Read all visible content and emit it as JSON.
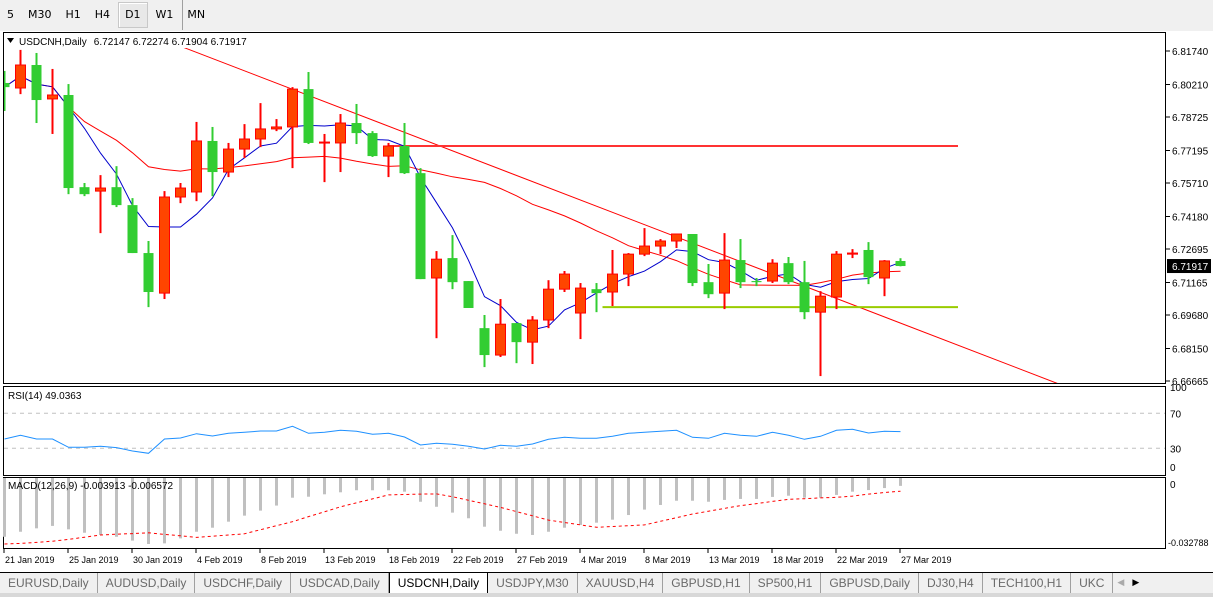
{
  "toolbar": {
    "timeframes": [
      {
        "label": "5",
        "active": false
      },
      {
        "label": "M30",
        "active": false
      },
      {
        "label": "H1",
        "active": false
      },
      {
        "label": "H4",
        "active": false
      },
      {
        "label": "D1",
        "active": true
      },
      {
        "label": "W1",
        "active": false
      },
      {
        "label": "MN",
        "active": false
      }
    ]
  },
  "header": {
    "menu_icon": "triangle-down-icon",
    "symbol": "USDCNH,Daily",
    "ohlc": "6.72147 6.72274 6.71904 6.71917"
  },
  "current_price": "6.71917",
  "price_ticks": [
    "6.81740",
    "6.80210",
    "6.78725",
    "6.77195",
    "6.75710",
    "6.74180",
    "6.72695",
    "6.71165",
    "6.69680",
    "6.68150",
    "6.66665"
  ],
  "date_labels": [
    "21 Jan 2019",
    "25 Jan 2019",
    "30 Jan 2019",
    "4 Feb 2019",
    "8 Feb 2019",
    "13 Feb 2019",
    "18 Feb 2019",
    "22 Feb 2019",
    "27 Feb 2019",
    "4 Mar 2019",
    "8 Mar 2019",
    "13 Mar 2019",
    "18 Mar 2019",
    "22 Mar 2019",
    "27 Mar 2019"
  ],
  "rsi": {
    "label": "RSI(14) 49.0363",
    "levels": [
      "100",
      "70",
      "30",
      "0"
    ]
  },
  "macd": {
    "label": "MACD(12,26,9) -0.003913 -0.006572",
    "levels": [
      "0",
      "-0.032788"
    ]
  },
  "tabs": [
    {
      "label": "EURUSD,Daily",
      "active": false
    },
    {
      "label": "AUDUSD,Daily",
      "active": false
    },
    {
      "label": "USDCHF,Daily",
      "active": false
    },
    {
      "label": "USDCAD,Daily",
      "active": false
    },
    {
      "label": "USDCNH,Daily",
      "active": true
    },
    {
      "label": "USDJPY,M30",
      "active": false
    },
    {
      "label": "XAUUSD,H4",
      "active": false
    },
    {
      "label": "GBPUSD,H1",
      "active": false
    },
    {
      "label": "SP500,H1",
      "active": false
    },
    {
      "label": "GBPUSD,Daily",
      "active": false
    },
    {
      "label": "DJ30,H4",
      "active": false
    },
    {
      "label": "TECH100,H1",
      "active": false
    },
    {
      "label": "UKC",
      "active": false
    }
  ],
  "tab_scroll": {
    "left_icon": "arrow-left-icon",
    "right_icon": "arrow-right-icon"
  },
  "colors": {
    "bull_body": "#ff4500",
    "bull_wick": "#ff0000",
    "bear_body": "#32cd32",
    "bear_wick": "#32cd32",
    "ma_fast": "#0000cc",
    "ma_slow": "#ff0000",
    "trendline": "#ff0000",
    "resistance": "#ff3333",
    "support": "#99cc00",
    "rsi": "#1e90ff",
    "macd_hist": "#c0c0c0",
    "macd_signal": "#ff0000"
  },
  "chart_data": {
    "type": "candlestick",
    "symbol": "USDCNH",
    "timeframe": "Daily",
    "ylim": [
      6.66665,
      6.8174
    ],
    "grid": false,
    "candles_format": [
      "date",
      "open",
      "high",
      "low",
      "close"
    ],
    "candles": [
      [
        "21 Jan 2019",
        6.8028,
        6.8083,
        6.79,
        6.8009
      ],
      [
        "22 Jan 2019",
        6.8005,
        6.8179,
        6.7977,
        6.811
      ],
      [
        "23 Jan 2019",
        6.811,
        6.8165,
        6.7845,
        6.795
      ],
      [
        "24 Jan 2019",
        6.7955,
        6.8092,
        6.7795,
        6.7973
      ],
      [
        "25 Jan 2019",
        6.7973,
        6.8023,
        6.752,
        6.7548
      ],
      [
        "27 Jan 2019",
        6.7552,
        6.7571,
        6.7511,
        6.752
      ],
      [
        "28 Jan 2019",
        6.7534,
        6.7607,
        6.7342,
        6.7548
      ],
      [
        "29 Jan 2019",
        6.7552,
        6.7648,
        6.7461,
        6.747
      ],
      [
        "30 Jan 2019",
        6.747,
        6.7502,
        6.7251,
        6.7251
      ],
      [
        "31 Jan 2019",
        6.7251,
        6.7306,
        6.7004,
        6.7073
      ],
      [
        "1 Feb 2019",
        6.7068,
        6.7534,
        6.7041,
        6.7507
      ],
      [
        "3 Feb 2019",
        6.7507,
        6.7571,
        6.7479,
        6.7548
      ],
      [
        "4 Feb 2019",
        6.753,
        6.785,
        6.7488,
        6.7763
      ],
      [
        "5 Feb 2019",
        6.7763,
        6.7827,
        6.7511,
        6.7621
      ],
      [
        "6 Feb 2019",
        6.7621,
        6.7754,
        6.7598,
        6.7726
      ],
      [
        "7 Feb 2019",
        6.7726,
        6.784,
        6.7685,
        6.7772
      ],
      [
        "8 Feb 2019",
        6.7772,
        6.7936,
        6.7735,
        6.7818
      ],
      [
        "10 Feb 2019",
        6.7818,
        6.7863,
        6.7808,
        6.7827
      ],
      [
        "11 Feb 2019",
        6.7827,
        6.8009,
        6.7639,
        6.8
      ],
      [
        "12 Feb 2019",
        6.8,
        6.8078,
        6.7749,
        6.7754
      ],
      [
        "13 Feb 2019",
        6.7754,
        6.7795,
        6.7575,
        6.7758
      ],
      [
        "14 Feb 2019",
        6.7754,
        6.7886,
        6.7621,
        6.7845
      ],
      [
        "15 Feb 2019",
        6.7845,
        6.7932,
        6.7749,
        6.7799
      ],
      [
        "17 Feb 2019",
        6.7799,
        6.7808,
        6.769,
        6.7694
      ],
      [
        "18 Feb 2019",
        6.7694,
        6.7754,
        6.7598,
        6.774
      ],
      [
        "19 Feb 2019",
        6.774,
        6.7845,
        6.7612,
        6.7616
      ],
      [
        "20 Feb 2019",
        6.7616,
        6.7639,
        6.7132,
        6.7132
      ],
      [
        "21 Feb 2019",
        6.7137,
        6.726,
        6.6862,
        6.7223
      ],
      [
        "22 Feb 2019",
        6.7228,
        6.7333,
        6.7086,
        6.7118
      ],
      [
        "24 Feb 2019",
        6.7123,
        6.7123,
        6.7,
        6.7
      ],
      [
        "25 Feb 2019",
        6.6908,
        6.6968,
        6.673,
        6.6785
      ],
      [
        "26 Feb 2019",
        6.6785,
        6.7041,
        6.6776,
        6.6926
      ],
      [
        "27 Feb 2019",
        6.6931,
        6.6931,
        6.6748,
        6.6844
      ],
      [
        "28 Feb 2019",
        6.6844,
        6.6963,
        6.6744,
        6.6945
      ],
      [
        "1 Mar 2019",
        6.6945,
        6.7127,
        6.6908,
        6.7086
      ],
      [
        "3 Mar 2019",
        6.7086,
        6.7169,
        6.7073,
        6.7155
      ],
      [
        "4 Mar 2019",
        6.6977,
        6.7114,
        6.6858,
        6.7091
      ],
      [
        "5 Mar 2019",
        6.7086,
        6.7114,
        6.6981,
        6.7068
      ],
      [
        "6 Mar 2019",
        6.7073,
        6.7265,
        6.7009,
        6.7155
      ],
      [
        "7 Mar 2019",
        6.7155,
        6.7251,
        6.71,
        6.7246
      ],
      [
        "8 Mar 2019",
        6.7246,
        6.7365,
        6.7237,
        6.7283
      ],
      [
        "10 Mar 2019",
        6.7283,
        6.7315,
        6.7246,
        6.7306
      ],
      [
        "11 Mar 2019",
        6.7306,
        6.7338,
        6.7274,
        6.7338
      ],
      [
        "12 Mar 2019",
        6.7338,
        6.7338,
        6.71,
        6.7114
      ],
      [
        "13 Mar 2019",
        6.7118,
        6.7201,
        6.7045,
        6.7063
      ],
      [
        "14 Mar 2019",
        6.7068,
        6.7342,
        6.6995,
        6.7219
      ],
      [
        "15 Mar 2019",
        6.7219,
        6.7315,
        6.7091,
        6.7118
      ],
      [
        "17 Mar 2019",
        6.7123,
        6.7137,
        6.71,
        6.7118
      ],
      [
        "18 Mar 2019",
        6.7123,
        6.7223,
        6.7114,
        6.7205
      ],
      [
        "19 Mar 2019",
        6.7205,
        6.7233,
        6.7109,
        6.7118
      ],
      [
        "20 Mar 2019",
        6.7118,
        6.7215,
        6.6949,
        6.6981
      ],
      [
        "21 Mar 2019",
        6.6981,
        6.7077,
        6.6689,
        6.7054
      ],
      [
        "22 Mar 2019",
        6.705,
        6.726,
        6.6995,
        6.7246
      ],
      [
        "24 Mar 2019",
        6.7246,
        6.7269,
        6.7228,
        6.7251
      ],
      [
        "25 Mar 2019",
        6.7265,
        6.7301,
        6.7109,
        6.7141
      ],
      [
        "26 Mar 2019",
        6.7137,
        6.7219,
        6.7054,
        6.7215
      ],
      [
        "27 Mar 2019",
        6.72147,
        6.72274,
        6.71904,
        6.71917
      ]
    ],
    "drawings": {
      "trendline": {
        "from": {
          "date": "1 Feb 2019",
          "price": 6.8224
        },
        "to": {
          "date": "27 Mar 2019",
          "price": 6.6931
        },
        "extend_right": true
      },
      "resistance": {
        "from_date": "18 Feb 2019",
        "price": 6.774
      },
      "support": {
        "from_date": "5 Mar 2019",
        "price": 6.7004
      }
    },
    "rsi": {
      "period": 14,
      "ylim": [
        0,
        100
      ],
      "levels": [
        70,
        30
      ],
      "values": [
        40.6,
        44.9,
        40.6,
        40.6,
        31.1,
        31.1,
        32.3,
        30.8,
        26.9,
        24.3,
        40.6,
        41.8,
        46.7,
        44.1,
        47.1,
        48.3,
        49.8,
        49.8,
        55.1,
        47.1,
        48.3,
        50.6,
        49.4,
        46.0,
        47.1,
        42.9,
        33.8,
        35.7,
        34.6,
        32.3,
        29.2,
        33.4,
        32.3,
        34.9,
        40.3,
        42.6,
        41.4,
        41.4,
        43.7,
        47.1,
        48.3,
        49.4,
        50.6,
        42.6,
        41.4,
        47.1,
        44.9,
        43.7,
        48.3,
        44.9,
        40.3,
        43.7,
        50.6,
        51.7,
        47.5,
        49.4,
        49.0363
      ]
    },
    "macd": {
      "params": [
        12,
        26,
        9
      ],
      "ylim": [
        -0.032788,
        0
      ],
      "main": [
        -0.0292,
        -0.0267,
        -0.025,
        -0.0238,
        -0.0255,
        -0.0272,
        -0.0283,
        -0.0292,
        -0.0311,
        -0.0328,
        -0.0325,
        -0.03,
        -0.0267,
        -0.0247,
        -0.0217,
        -0.0187,
        -0.0162,
        -0.0137,
        -0.0098,
        -0.0093,
        -0.0081,
        -0.0071,
        -0.0061,
        -0.0061,
        -0.0061,
        -0.0068,
        -0.0118,
        -0.0143,
        -0.0172,
        -0.02,
        -0.0242,
        -0.0262,
        -0.0277,
        -0.0283,
        -0.0267,
        -0.0247,
        -0.0233,
        -0.0222,
        -0.0207,
        -0.0184,
        -0.0157,
        -0.0134,
        -0.0113,
        -0.0113,
        -0.0118,
        -0.0109,
        -0.0104,
        -0.0104,
        -0.0094,
        -0.0088,
        -0.0098,
        -0.0098,
        -0.0084,
        -0.0068,
        -0.006,
        -0.005,
        -0.003913
      ],
      "signal": [
        -0.0328,
        -0.0325,
        -0.032,
        -0.0314,
        -0.0305,
        -0.0294,
        -0.0283,
        -0.0279,
        -0.0276,
        -0.0272,
        -0.028,
        -0.0287,
        -0.0295,
        -0.0289,
        -0.0283,
        -0.0277,
        -0.0257,
        -0.0237,
        -0.0217,
        -0.0192,
        -0.0168,
        -0.0143,
        -0.0123,
        -0.0104,
        -0.0084,
        -0.0082,
        -0.008,
        -0.0079,
        -0.0093,
        -0.0111,
        -0.0128,
        -0.0146,
        -0.0167,
        -0.0188,
        -0.0209,
        -0.0221,
        -0.0233,
        -0.0245,
        -0.0241,
        -0.0237,
        -0.0233,
        -0.0215,
        -0.0197,
        -0.0179,
        -0.0165,
        -0.0151,
        -0.0137,
        -0.0127,
        -0.0116,
        -0.0106,
        -0.0103,
        -0.0099,
        -0.0096,
        -0.009,
        -0.008,
        -0.0072,
        -0.006572
      ]
    }
  }
}
